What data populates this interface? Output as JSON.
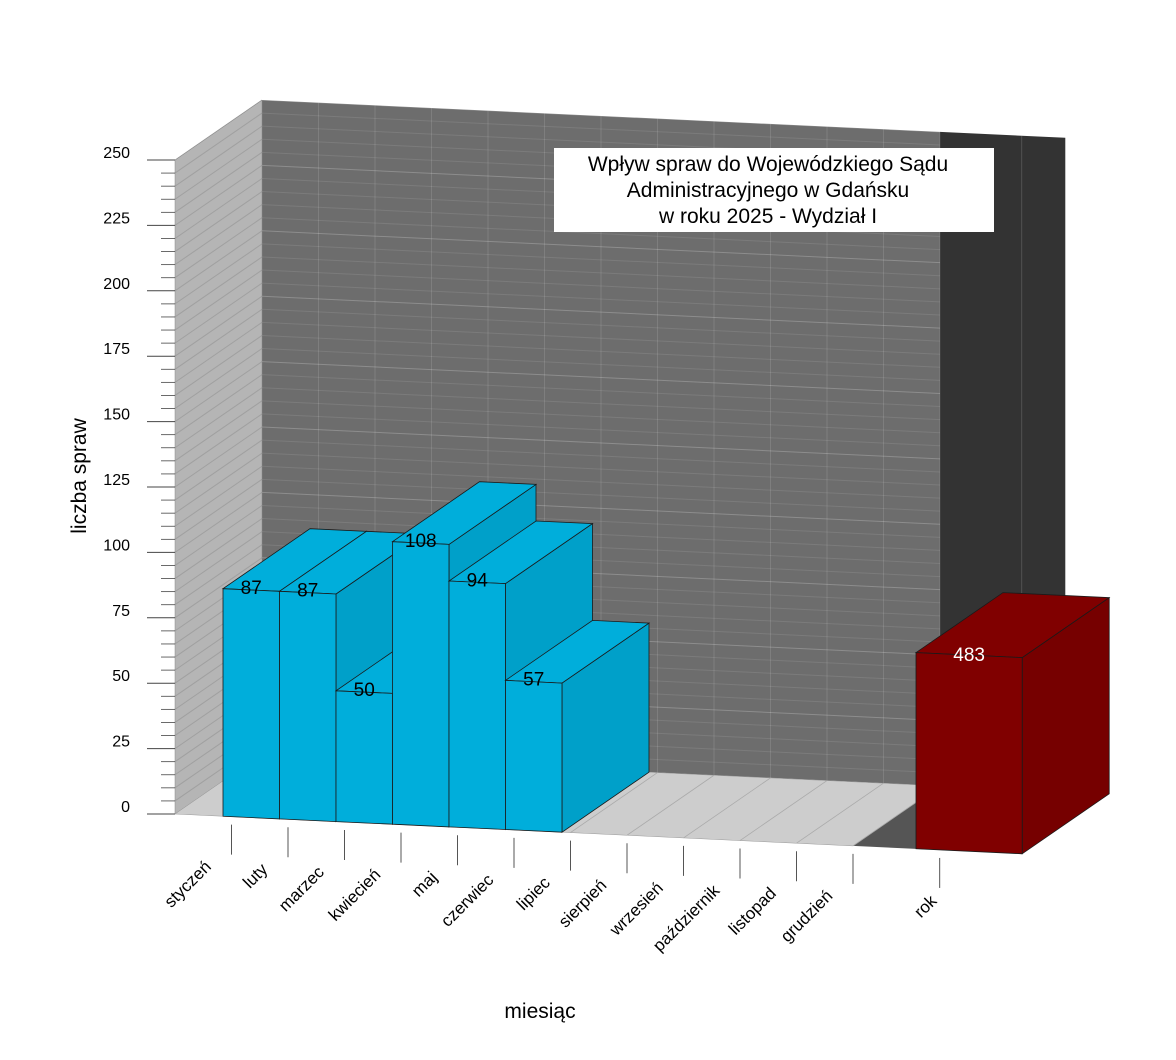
{
  "chart_data": {
    "type": "bar",
    "title": "Wpływ spraw do Wojewódzkiego Sądu Administracyjnego w Gdańsku w roku 2025 - Wydział I",
    "title_lines": [
      "Wpływ spraw do Wojewódzkiego Sądu",
      "Administracyjnego w Gdańsku",
      "w roku 2025 - Wydział I"
    ],
    "xlabel": "miesiąc",
    "ylabel": "liczba spraw",
    "ylim": [
      0,
      250
    ],
    "yticks": [
      "0",
      "25",
      "50",
      "75",
      "100",
      "125",
      "150",
      "175",
      "200",
      "225",
      "250"
    ],
    "categories": [
      "styczeń",
      "luty",
      "marzec",
      "kwiecień",
      "maj",
      "czerwiec",
      "lipiec",
      "sierpień",
      "wrzesień",
      "październik",
      "listopad",
      "grudzień"
    ],
    "series": [
      {
        "values": [
          87,
          87,
          50,
          108,
          94,
          57,
          null,
          null,
          null,
          null,
          null,
          null
        ],
        "color": "#00AEDB"
      }
    ],
    "data_labels": [
      "87",
      "87",
      "50",
      "108",
      "94",
      "57",
      "",
      "",
      "",
      "",
      "",
      ""
    ],
    "total": {
      "category": "rok",
      "value": 483,
      "label": "483",
      "color": "#800000"
    },
    "style": "3d",
    "grid": true,
    "legend": "none",
    "colors": {
      "wall": "#6D6D6D",
      "floor": "#CDCDCD",
      "side_wall": "#B5B5B5",
      "total_wall": "#333333"
    }
  }
}
